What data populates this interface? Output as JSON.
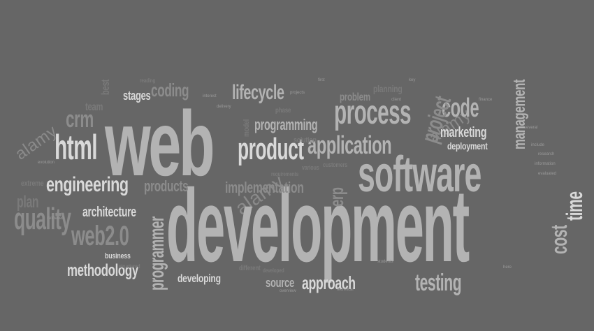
{
  "cloud": {
    "web": "web",
    "development": "development",
    "software": "software",
    "html": "html",
    "engineering": "engineering",
    "quality": "quality",
    "web20": "web2.0",
    "methodology": "methodology",
    "programmer": "programmer",
    "architecture": "architecture",
    "product": "product",
    "process": "process",
    "application": "application",
    "implementation": "implementation",
    "lifecycle": "lifecycle",
    "coding": "coding",
    "stages": "stages",
    "crm": "crm",
    "team": "team",
    "best": "best",
    "plan": "plan",
    "code": "code",
    "marketing": "marketing",
    "project": "project",
    "management": "management",
    "deployment": "deployment",
    "time": "time",
    "cost": "cost",
    "testing": "testing",
    "approach": "approach",
    "source": "source",
    "developing": "developing",
    "erp": "erp",
    "products": "products",
    "programming": "programming",
    "problem": "problem",
    "planning": "planning",
    "business": "business",
    "extreme": "extreme",
    "solution": "solution",
    "different": "different",
    "phase": "phase",
    "model": "model",
    "various": "various",
    "requirements": "requirements",
    "customers": "customers",
    "developed": "developed",
    "reading": "reading",
    "structured": "structured"
  },
  "watermark": {
    "left": "alamy",
    "center": "alamy",
    "right": "alamy"
  }
}
